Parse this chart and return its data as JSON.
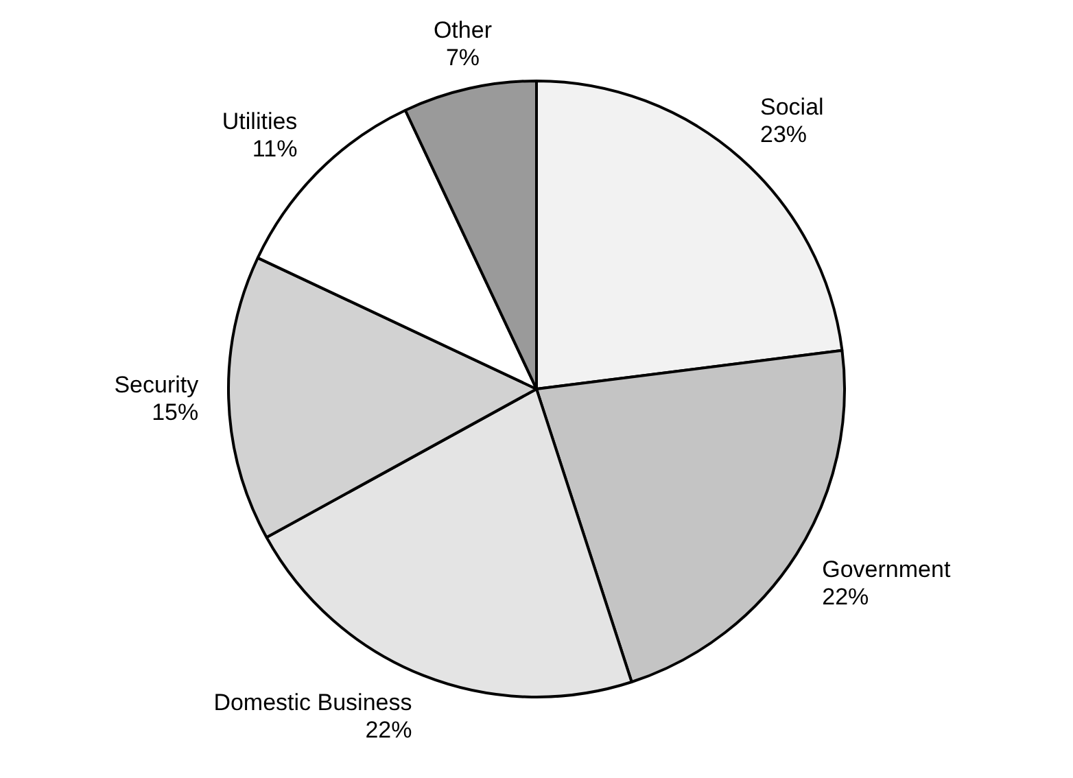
{
  "chart_data": {
    "type": "pie",
    "categories": [
      "Social",
      "Government",
      "Domestic Business",
      "Security",
      "Utilities",
      "Other"
    ],
    "values": [
      23,
      22,
      22,
      15,
      11,
      7
    ],
    "value_labels": [
      "23%",
      "22%",
      "22%",
      "15%",
      "11%",
      "7%"
    ],
    "colors": [
      "#f2f2f2",
      "#c4c4c4",
      "#e4e4e4",
      "#d2d2d2",
      "#ffffff",
      "#9a9a9a"
    ],
    "legend": false
  }
}
